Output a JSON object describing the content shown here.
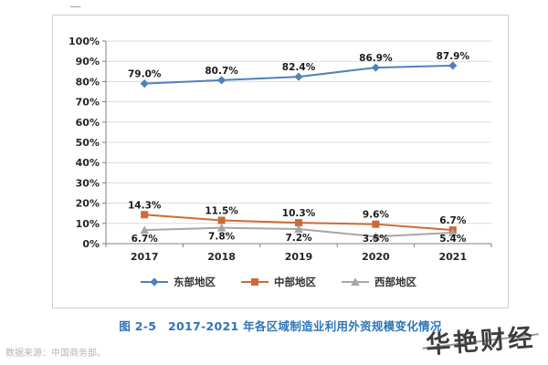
{
  "page": {
    "top_dash": "—",
    "source_note": "数据来源：中国商务部。",
    "watermark": "华艳财经"
  },
  "chart_data": {
    "type": "line",
    "title": "图 2-5　2017-2021 年各区域制造业利用外资规模变化情况",
    "x": [
      "2017",
      "2018",
      "2019",
      "2020",
      "2021"
    ],
    "series": [
      {
        "name": "东部地区",
        "color": "#4f81bd",
        "marker": "diamond",
        "label_position": "above",
        "values": [
          79.0,
          80.7,
          82.4,
          86.9,
          87.9
        ]
      },
      {
        "name": "中部地区",
        "color": "#cd6a35",
        "marker": "square",
        "label_position": "above",
        "values": [
          14.3,
          11.5,
          10.3,
          9.6,
          6.7
        ]
      },
      {
        "name": "西部地区",
        "color": "#a6a6a6",
        "marker": "triangle",
        "label_position": "below",
        "values": [
          6.7,
          7.8,
          7.2,
          3.5,
          5.4
        ]
      }
    ],
    "xlabel": "",
    "ylabel": "",
    "ylim": [
      0,
      100
    ],
    "ytick_step": 10,
    "ytick_suffix": "%",
    "grid": true,
    "legend_position": "bottom"
  }
}
